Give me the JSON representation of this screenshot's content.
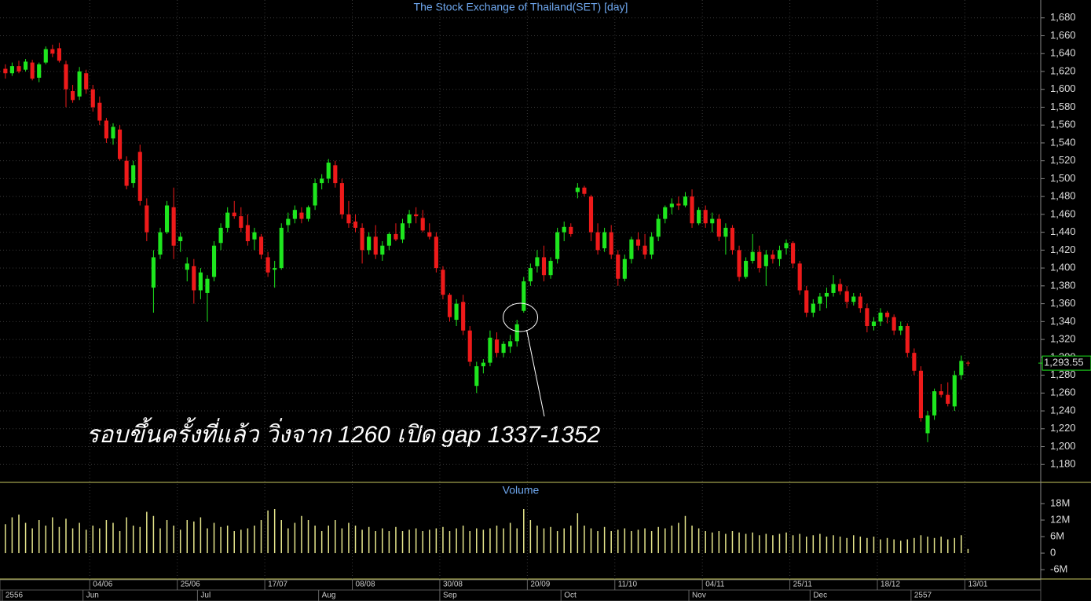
{
  "chart_data": [
    {
      "type": "candlestick",
      "title": "The Stock Exchange of Thailand(SET) [day]",
      "up_color": "#1ee61e",
      "down_color": "#ee1a1a",
      "grid": true,
      "ylim": [
        1160,
        1700
      ],
      "xlim": [
        -0.8,
        153.8
      ],
      "yticks": [
        {
          "value": 1180,
          "label": "1,180"
        },
        {
          "value": 1200,
          "label": "1,200"
        },
        {
          "value": 1220,
          "label": "1,220"
        },
        {
          "value": 1240,
          "label": "1,240"
        },
        {
          "value": 1260,
          "label": "1,260"
        },
        {
          "value": 1280,
          "label": "1,280"
        },
        {
          "value": 1300,
          "label": "1,300"
        },
        {
          "value": 1320,
          "label": "1,320"
        },
        {
          "value": 1340,
          "label": "1,340"
        },
        {
          "value": 1360,
          "label": "1,360"
        },
        {
          "value": 1380,
          "label": "1,380"
        },
        {
          "value": 1400,
          "label": "1,400"
        },
        {
          "value": 1420,
          "label": "1,420"
        },
        {
          "value": 1440,
          "label": "1,440"
        },
        {
          "value": 1460,
          "label": "1,460"
        },
        {
          "value": 1480,
          "label": "1,480"
        },
        {
          "value": 1500,
          "label": "1,500"
        },
        {
          "value": 1520,
          "label": "1,520"
        },
        {
          "value": 1540,
          "label": "1,540"
        },
        {
          "value": 1560,
          "label": "1,560"
        },
        {
          "value": 1580,
          "label": "1,580"
        },
        {
          "value": 1600,
          "label": "1,600"
        },
        {
          "value": 1620,
          "label": "1,620"
        },
        {
          "value": 1640,
          "label": "1,640"
        },
        {
          "value": 1660,
          "label": "1,660"
        },
        {
          "value": 1680,
          "label": "1,680"
        }
      ],
      "xticks": [
        {
          "value": 13,
          "label": "04/06"
        },
        {
          "value": 26,
          "label": "25/06"
        },
        {
          "value": 39,
          "label": "17/07"
        },
        {
          "value": 52,
          "label": "08/08"
        },
        {
          "value": 65,
          "label": "30/08"
        },
        {
          "value": 78,
          "label": "20/09"
        },
        {
          "value": 91,
          "label": "11/10"
        },
        {
          "value": 104,
          "label": "04/11"
        },
        {
          "value": 117,
          "label": "25/11"
        },
        {
          "value": 130,
          "label": "18/12"
        },
        {
          "value": 143,
          "label": "13/01"
        }
      ],
      "xticks_months": [
        {
          "value": 0,
          "label": "2556"
        },
        {
          "value": 12,
          "label": "Jun"
        },
        {
          "value": 29,
          "label": "Jul"
        },
        {
          "value": 47,
          "label": "Aug"
        },
        {
          "value": 65,
          "label": "Sep"
        },
        {
          "value": 83,
          "label": "Oct"
        },
        {
          "value": 102,
          "label": "Nov"
        },
        {
          "value": 120,
          "label": "Dec"
        },
        {
          "value": 135,
          "label": "2557"
        }
      ],
      "last_label": {
        "value": 1293.55,
        "label": "1,293.55"
      },
      "annotation": "รอบขึ้นครั้งที่แล้ว วิ่งจาก 1260 เปิด gap 1337-1352",
      "ohlc": [
        [
          1623,
          1628,
          1612,
          1618
        ],
        [
          1618,
          1630,
          1615,
          1626
        ],
        [
          1626,
          1632,
          1618,
          1620
        ],
        [
          1622,
          1634,
          1620,
          1631
        ],
        [
          1630,
          1633,
          1610,
          1612
        ],
        [
          1613,
          1630,
          1608,
          1628
        ],
        [
          1630,
          1648,
          1628,
          1645
        ],
        [
          1645,
          1650,
          1636,
          1640
        ],
        [
          1646,
          1652,
          1630,
          1632
        ],
        [
          1628,
          1632,
          1580,
          1600
        ],
        [
          1598,
          1605,
          1585,
          1588
        ],
        [
          1592,
          1625,
          1588,
          1620
        ],
        [
          1618,
          1622,
          1595,
          1600
        ],
        [
          1600,
          1605,
          1575,
          1580
        ],
        [
          1585,
          1592,
          1560,
          1565
        ],
        [
          1565,
          1568,
          1540,
          1545
        ],
        [
          1545,
          1562,
          1538,
          1558
        ],
        [
          1555,
          1560,
          1520,
          1522
        ],
        [
          1520,
          1525,
          1488,
          1492
        ],
        [
          1495,
          1520,
          1490,
          1515
        ],
        [
          1530,
          1538,
          1470,
          1475
        ],
        [
          1470,
          1478,
          1430,
          1440
        ],
        [
          1378,
          1420,
          1350,
          1412
        ],
        [
          1415,
          1445,
          1410,
          1440
        ],
        [
          1440,
          1475,
          1438,
          1470
        ],
        [
          1468,
          1490,
          1410,
          1425
        ],
        [
          1430,
          1440,
          1418,
          1435
        ],
        [
          1398,
          1412,
          1385,
          1405
        ],
        [
          1402,
          1410,
          1360,
          1375
        ],
        [
          1375,
          1400,
          1365,
          1395
        ],
        [
          1372,
          1392,
          1340,
          1388
        ],
        [
          1390,
          1430,
          1385,
          1425
        ],
        [
          1428,
          1450,
          1420,
          1445
        ],
        [
          1445,
          1468,
          1440,
          1462
        ],
        [
          1462,
          1475,
          1455,
          1458
        ],
        [
          1458,
          1468,
          1440,
          1445
        ],
        [
          1448,
          1460,
          1425,
          1430
        ],
        [
          1432,
          1445,
          1420,
          1440
        ],
        [
          1435,
          1438,
          1410,
          1415
        ],
        [
          1412,
          1418,
          1390,
          1395
        ],
        [
          1398,
          1408,
          1378,
          1400
        ],
        [
          1400,
          1450,
          1398,
          1445
        ],
        [
          1448,
          1462,
          1440,
          1455
        ],
        [
          1455,
          1470,
          1450,
          1465
        ],
        [
          1462,
          1468,
          1450,
          1455
        ],
        [
          1455,
          1470,
          1452,
          1468
        ],
        [
          1470,
          1500,
          1465,
          1495
        ],
        [
          1495,
          1505,
          1488,
          1500
        ],
        [
          1500,
          1522,
          1495,
          1518
        ],
        [
          1515,
          1520,
          1490,
          1495
        ],
        [
          1495,
          1500,
          1455,
          1460
        ],
        [
          1460,
          1475,
          1445,
          1450
        ],
        [
          1452,
          1460,
          1440,
          1445
        ],
        [
          1445,
          1450,
          1405,
          1420
        ],
        [
          1420,
          1440,
          1415,
          1435
        ],
        [
          1435,
          1448,
          1410,
          1415
        ],
        [
          1415,
          1430,
          1408,
          1425
        ],
        [
          1425,
          1440,
          1420,
          1438
        ],
        [
          1438,
          1450,
          1430,
          1432
        ],
        [
          1432,
          1455,
          1428,
          1450
        ],
        [
          1450,
          1465,
          1445,
          1460
        ],
        [
          1460,
          1468,
          1450,
          1458
        ],
        [
          1456,
          1465,
          1440,
          1442
        ],
        [
          1440,
          1450,
          1432,
          1435
        ],
        [
          1435,
          1440,
          1395,
          1400
        ],
        [
          1398,
          1402,
          1365,
          1370
        ],
        [
          1370,
          1372,
          1340,
          1345
        ],
        [
          1342,
          1365,
          1335,
          1360
        ],
        [
          1362,
          1370,
          1325,
          1330
        ],
        [
          1330,
          1335,
          1290,
          1295
        ],
        [
          1268,
          1295,
          1260,
          1290
        ],
        [
          1290,
          1298,
          1282,
          1294
        ],
        [
          1294,
          1330,
          1290,
          1322
        ],
        [
          1320,
          1328,
          1300,
          1305
        ],
        [
          1305,
          1318,
          1300,
          1315
        ],
        [
          1312,
          1325,
          1305,
          1318
        ],
        [
          1318,
          1342,
          1312,
          1337
        ],
        [
          1352,
          1390,
          1350,
          1385
        ],
        [
          1385,
          1405,
          1380,
          1400
        ],
        [
          1402,
          1420,
          1395,
          1412
        ],
        [
          1412,
          1425,
          1385,
          1392
        ],
        [
          1392,
          1412,
          1388,
          1408
        ],
        [
          1410,
          1445,
          1405,
          1440
        ],
        [
          1440,
          1452,
          1430,
          1446
        ],
        [
          1446,
          1450,
          1435,
          1438
        ],
        [
          1485,
          1495,
          1478,
          1490
        ],
        [
          1490,
          1492,
          1480,
          1483
        ],
        [
          1480,
          1482,
          1430,
          1440
        ],
        [
          1440,
          1450,
          1415,
          1420
        ],
        [
          1422,
          1445,
          1418,
          1440
        ],
        [
          1440,
          1448,
          1410,
          1415
        ],
        [
          1415,
          1420,
          1380,
          1388
        ],
        [
          1388,
          1415,
          1385,
          1410
        ],
        [
          1410,
          1435,
          1405,
          1432
        ],
        [
          1432,
          1440,
          1420,
          1425
        ],
        [
          1425,
          1438,
          1410,
          1415
        ],
        [
          1415,
          1440,
          1410,
          1435
        ],
        [
          1435,
          1460,
          1430,
          1455
        ],
        [
          1455,
          1470,
          1450,
          1468
        ],
        [
          1468,
          1478,
          1460,
          1472
        ],
        [
          1472,
          1480,
          1465,
          1470
        ],
        [
          1470,
          1485,
          1468,
          1480
        ],
        [
          1480,
          1488,
          1445,
          1450
        ],
        [
          1450,
          1468,
          1448,
          1465
        ],
        [
          1465,
          1470,
          1445,
          1450
        ],
        [
          1450,
          1462,
          1440,
          1455
        ],
        [
          1455,
          1460,
          1430,
          1435
        ],
        [
          1435,
          1450,
          1415,
          1445
        ],
        [
          1445,
          1448,
          1415,
          1420
        ],
        [
          1420,
          1425,
          1385,
          1390
        ],
        [
          1390,
          1412,
          1388,
          1408
        ],
        [
          1408,
          1438,
          1405,
          1418
        ],
        [
          1418,
          1425,
          1395,
          1400
        ],
        [
          1402,
          1420,
          1380,
          1415
        ],
        [
          1415,
          1420,
          1405,
          1410
        ],
        [
          1410,
          1425,
          1402,
          1420
        ],
        [
          1422,
          1432,
          1415,
          1428
        ],
        [
          1428,
          1430,
          1400,
          1405
        ],
        [
          1405,
          1408,
          1370,
          1375
        ],
        [
          1375,
          1380,
          1345,
          1350
        ],
        [
          1350,
          1365,
          1345,
          1360
        ],
        [
          1360,
          1372,
          1352,
          1368
        ],
        [
          1368,
          1378,
          1355,
          1372
        ],
        [
          1372,
          1392,
          1368,
          1382
        ],
        [
          1382,
          1388,
          1370,
          1374
        ],
        [
          1374,
          1380,
          1355,
          1362
        ],
        [
          1362,
          1372,
          1358,
          1368
        ],
        [
          1368,
          1372,
          1350,
          1355
        ],
        [
          1355,
          1360,
          1328,
          1335
        ],
        [
          1335,
          1345,
          1330,
          1340
        ],
        [
          1340,
          1355,
          1335,
          1350
        ],
        [
          1350,
          1352,
          1338,
          1345
        ],
        [
          1345,
          1348,
          1325,
          1330
        ],
        [
          1330,
          1340,
          1325,
          1335
        ],
        [
          1335,
          1338,
          1300,
          1305
        ],
        [
          1305,
          1310,
          1280,
          1285
        ],
        [
          1285,
          1290,
          1228,
          1232
        ],
        [
          1215,
          1240,
          1205,
          1235
        ],
        [
          1235,
          1265,
          1230,
          1262
        ],
        [
          1262,
          1270,
          1255,
          1258
        ],
        [
          1258,
          1272,
          1245,
          1248
        ],
        [
          1245,
          1285,
          1240,
          1280
        ],
        [
          1280,
          1302,
          1275,
          1296
        ],
        [
          1294,
          1296,
          1290,
          1293.55
        ]
      ]
    },
    {
      "type": "bar",
      "title": "Volume",
      "color": "#e6e68c",
      "ylim": [
        -9400000,
        25700000
      ],
      "yticks": [
        {
          "value": 18000000,
          "label": "18M"
        },
        {
          "value": 12000000,
          "label": "12M"
        },
        {
          "value": 6000000,
          "label": "6M"
        },
        0,
        {
          "value": -6000000,
          "label": "-6M"
        }
      ],
      "values": [
        10500000.0,
        13000000.0,
        14000000.0,
        11000000.0,
        9000000.0,
        12000000.0,
        10000000.0,
        13000000.0,
        9500000.0,
        12500000.0,
        9000000.0,
        11000000.0,
        8500000.0,
        10000000.0,
        9000000.0,
        12000000.0,
        11000000.0,
        8000000.0,
        13000000.0,
        10000000.0,
        9500000.0,
        15000000.0,
        13500000.0,
        9000000.0,
        12000000.0,
        10000000.0,
        8500000.0,
        12000000.0,
        11500000.0,
        13000000.0,
        9000000.0,
        11000000.0,
        9500000.0,
        10000000.0,
        8000000.0,
        8500000.0,
        9000000.0,
        10000000.0,
        12000000.0,
        15500000.0,
        16000000.0,
        12000000.0,
        9000000.0,
        11000000.0,
        13500000.0,
        12000000.0,
        10000000.0,
        8000000.0,
        10000000.0,
        12000000.0,
        9000000.0,
        11000000.0,
        10000000.0,
        8500000.0,
        9500000.0,
        8000000.0,
        9000000.0,
        8000000.0,
        9500000.0,
        8000000.0,
        8500000.0,
        9000000.0,
        8000000.0,
        8500000.0,
        9000000.0,
        9500000.0,
        8000000.0,
        9000000.0,
        10000000.0,
        8000000.0,
        9000000.0,
        8500000.0,
        9000000.0,
        10000000.0,
        9000000.0,
        11000000.0,
        9000000.0,
        16000000.0,
        12000000.0,
        10000000.0,
        9000000.0,
        9500000.0,
        8000000.0,
        9000000.0,
        10000000.0,
        14500000.0,
        10000000.0,
        9000000.0,
        8000000.0,
        9500000.0,
        8000000.0,
        8500000.0,
        9000000.0,
        8000000.0,
        8500000.0,
        9000000.0,
        8000000.0,
        9500000.0,
        9000000.0,
        10000000.0,
        11000000.0,
        13500000.0,
        10000000.0,
        9000000.0,
        8000000.0,
        7500000.0,
        8000000.0,
        7000000.0,
        8000000.0,
        7500000.0,
        7000000.0,
        7500000.0,
        6500000.0,
        7000000.0,
        6500000.0,
        7000000.0,
        7500000.0,
        6500000.0,
        7000000.0,
        6000000.0,
        6500000.0,
        7000000.0,
        6000000.0,
        6500000.0,
        6000000.0,
        5500000.0,
        6500000.0,
        6000000.0,
        5500000.0,
        6000000.0,
        5000000.0,
        5500000.0,
        5000000.0,
        4500000.0,
        5000000.0,
        5500000.0,
        6500000.0,
        6000000.0,
        5500000.0,
        6000000.0,
        5000000.0,
        5500000.0,
        6500000.0,
        1500000.0
      ]
    }
  ]
}
